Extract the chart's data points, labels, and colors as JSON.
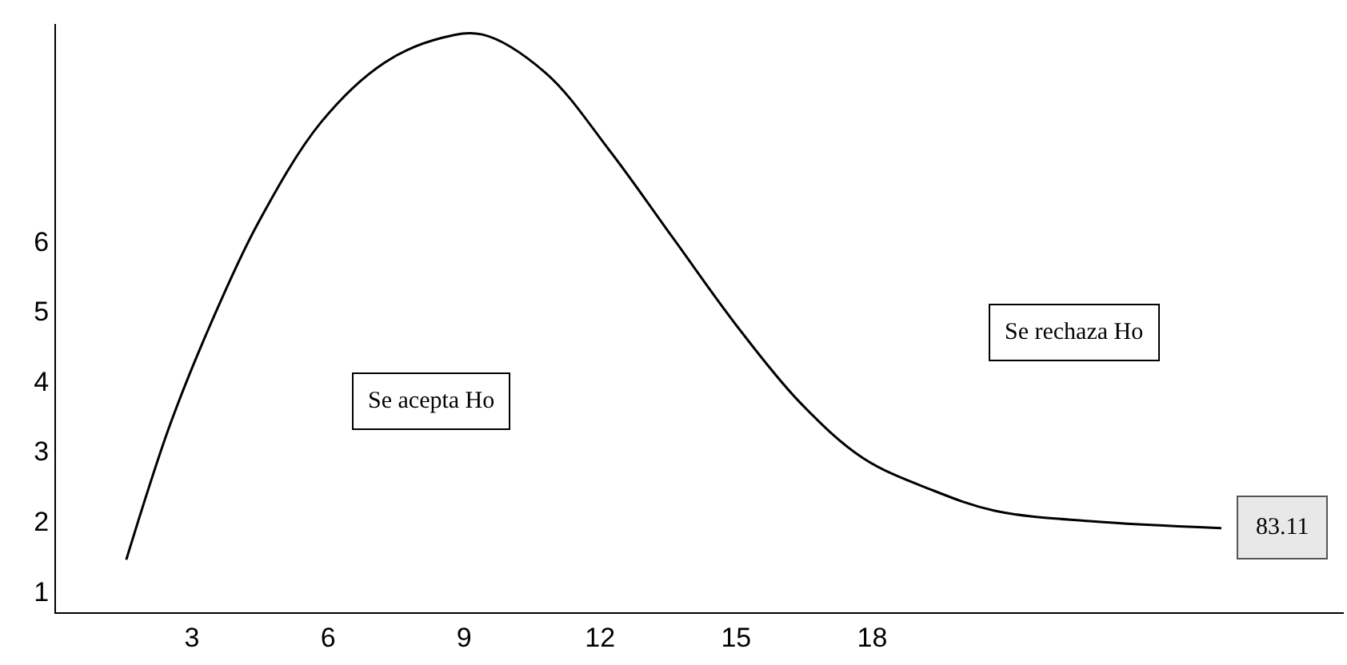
{
  "chart_data": {
    "type": "line",
    "x": [
      1.55,
      2.5,
      3.4,
      4.45,
      5.85,
      7.25,
      8.5,
      9.4,
      10.8,
      12.2,
      13.6,
      15.0,
      16.4,
      17.8,
      19.3,
      20.7,
      22.8,
      25.7
    ],
    "values": [
      1.45,
      3.35,
      4.8,
      6.25,
      7.7,
      8.55,
      8.9,
      8.95,
      8.4,
      7.3,
      6.05,
      4.8,
      3.7,
      2.9,
      2.45,
      2.15,
      2.0,
      1.9
    ],
    "color": "#000000",
    "xlim": [
      0,
      28.4
    ],
    "ylim": [
      0.7,
      9.1
    ],
    "xticks": [
      3,
      6,
      9,
      12,
      15,
      18
    ],
    "yticks": [
      1,
      2,
      3,
      4,
      5,
      6
    ],
    "grid": false,
    "legend": false,
    "marker": "none",
    "line_style": "solid",
    "annotations": [
      "Se acepta Ho",
      "Se rechaza Ho",
      {
        "text": "83.11",
        "x": 25.7,
        "y": 1.9
      }
    ]
  }
}
